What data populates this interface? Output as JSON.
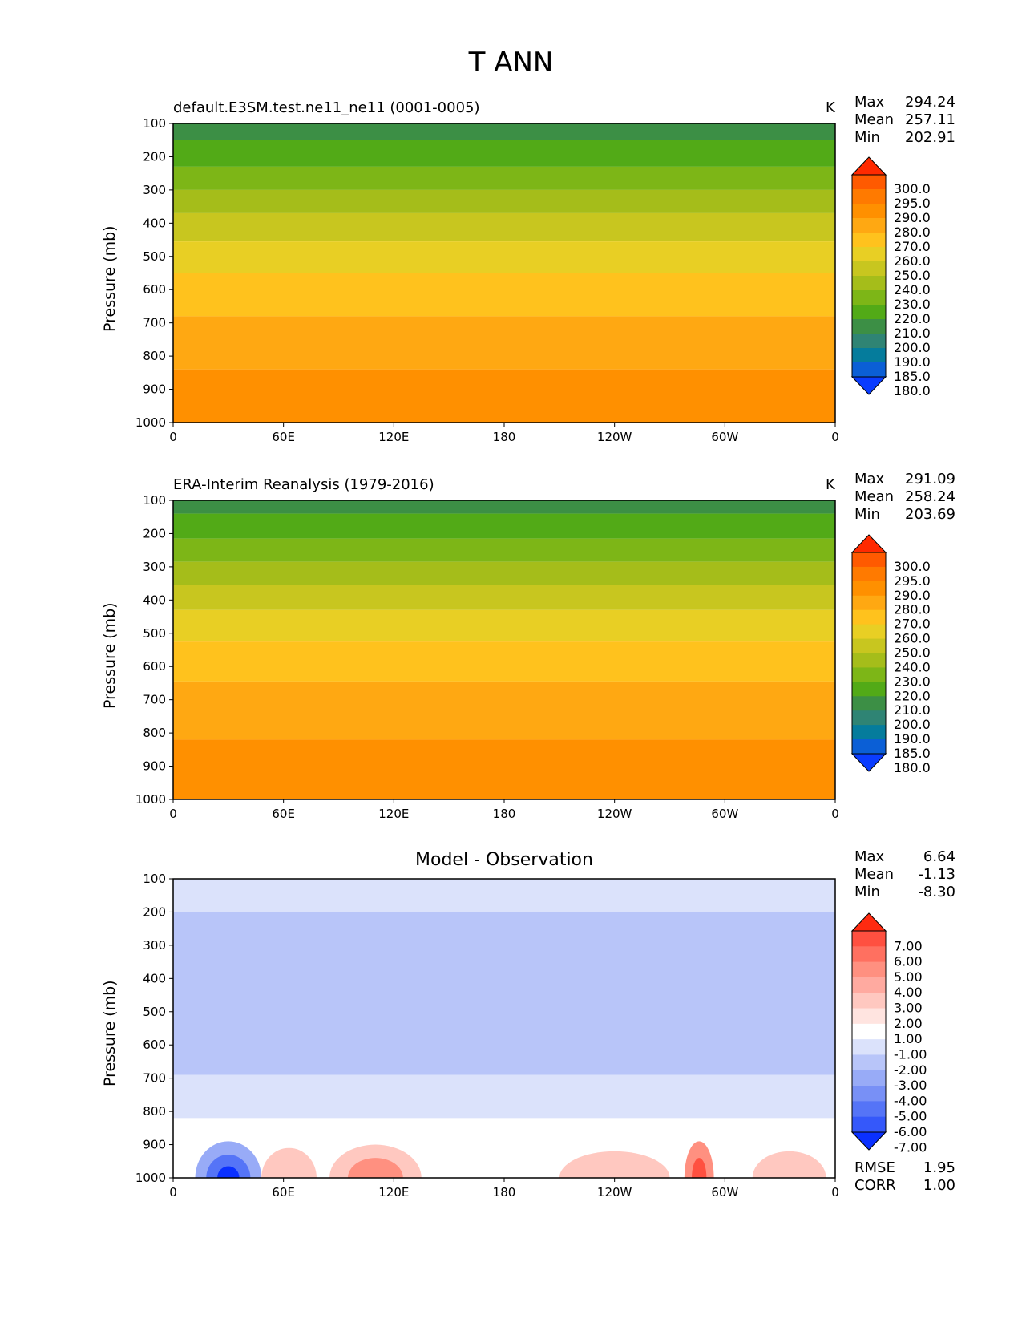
{
  "figure": {
    "title": "T ANN"
  },
  "chart_data": [
    {
      "type": "contour",
      "title": "default.E3SM.test.ne11_ne11 (0001-0005)",
      "units": "K",
      "ylabel": "Pressure (mb)",
      "xticks": [
        "0",
        "60E",
        "120E",
        "180",
        "120W",
        "60W",
        "0"
      ],
      "yticks": [
        "100",
        "200",
        "300",
        "400",
        "500",
        "600",
        "700",
        "800",
        "900",
        "1000"
      ],
      "ylim": [
        100,
        1000
      ],
      "stats": {
        "max_label": "Max",
        "max": "294.24",
        "mean_label": "Mean",
        "mean": "257.11",
        "min_label": "Min",
        "min": "202.91"
      },
      "colorbar_levels": [
        "300.0",
        "295.0",
        "290.0",
        "280.0",
        "270.0",
        "260.0",
        "250.0",
        "240.0",
        "230.0",
        "220.0",
        "210.0",
        "200.0",
        "190.0",
        "185.0",
        "180.0"
      ],
      "colorbar_colors": [
        "#ff2a00",
        "#ff5a00",
        "#ff7a00",
        "#ff9000",
        "#ffa812",
        "#ffc21d",
        "#e8cf24",
        "#c8c61f",
        "#a5bd1a",
        "#7db617",
        "#52aa17",
        "#3c8f45",
        "#2f8474",
        "#057c9c",
        "#0b5fd6",
        "#0a3cff"
      ],
      "bands": [
        {
          "p_top": 100,
          "p_bottom": 150,
          "color": "#3c8f45"
        },
        {
          "p_top": 150,
          "p_bottom": 230,
          "color": "#52aa17"
        },
        {
          "p_top": 230,
          "p_bottom": 300,
          "color": "#7db617"
        },
        {
          "p_top": 300,
          "p_bottom": 370,
          "color": "#a5bd1a"
        },
        {
          "p_top": 370,
          "p_bottom": 455,
          "color": "#c8c61f"
        },
        {
          "p_top": 455,
          "p_bottom": 550,
          "color": "#e8cf24"
        },
        {
          "p_top": 550,
          "p_bottom": 680,
          "color": "#ffc21d"
        },
        {
          "p_top": 680,
          "p_bottom": 840,
          "color": "#ffa812"
        },
        {
          "p_top": 840,
          "p_bottom": 1000,
          "color": "#ff9000"
        }
      ]
    },
    {
      "type": "contour",
      "title": "ERA-Interim Reanalysis (1979-2016)",
      "units": "K",
      "ylabel": "Pressure (mb)",
      "xticks": [
        "0",
        "60E",
        "120E",
        "180",
        "120W",
        "60W",
        "0"
      ],
      "yticks": [
        "100",
        "200",
        "300",
        "400",
        "500",
        "600",
        "700",
        "800",
        "900",
        "1000"
      ],
      "ylim": [
        100,
        1000
      ],
      "stats": {
        "max_label": "Max",
        "max": "291.09",
        "mean_label": "Mean",
        "mean": "258.24",
        "min_label": "Min",
        "min": "203.69"
      },
      "colorbar_levels": [
        "300.0",
        "295.0",
        "290.0",
        "280.0",
        "270.0",
        "260.0",
        "250.0",
        "240.0",
        "230.0",
        "220.0",
        "210.0",
        "200.0",
        "190.0",
        "185.0",
        "180.0"
      ],
      "colorbar_colors": [
        "#ff2a00",
        "#ff5a00",
        "#ff7a00",
        "#ff9000",
        "#ffa812",
        "#ffc21d",
        "#e8cf24",
        "#c8c61f",
        "#a5bd1a",
        "#7db617",
        "#52aa17",
        "#3c8f45",
        "#2f8474",
        "#057c9c",
        "#0b5fd6",
        "#0a3cff"
      ],
      "bands": [
        {
          "p_top": 100,
          "p_bottom": 140,
          "color": "#3c8f45"
        },
        {
          "p_top": 140,
          "p_bottom": 215,
          "color": "#52aa17"
        },
        {
          "p_top": 215,
          "p_bottom": 285,
          "color": "#7db617"
        },
        {
          "p_top": 285,
          "p_bottom": 355,
          "color": "#a5bd1a"
        },
        {
          "p_top": 355,
          "p_bottom": 430,
          "color": "#c8c61f"
        },
        {
          "p_top": 430,
          "p_bottom": 525,
          "color": "#e8cf24"
        },
        {
          "p_top": 525,
          "p_bottom": 645,
          "color": "#ffc21d"
        },
        {
          "p_top": 645,
          "p_bottom": 820,
          "color": "#ffa812"
        },
        {
          "p_top": 820,
          "p_bottom": 1000,
          "color": "#ff9000"
        }
      ]
    },
    {
      "type": "contour",
      "title": "Model - Observation",
      "ylabel": "Pressure (mb)",
      "xticks": [
        "0",
        "60E",
        "120E",
        "180",
        "120W",
        "60W",
        "0"
      ],
      "yticks": [
        "100",
        "200",
        "300",
        "400",
        "500",
        "600",
        "700",
        "800",
        "900",
        "1000"
      ],
      "ylim": [
        100,
        1000
      ],
      "stats": {
        "max_label": "Max",
        "max": "6.64",
        "mean_label": "Mean",
        "mean": "-1.13",
        "min_label": "Min",
        "min": "-8.30"
      },
      "metrics": {
        "rmse_label": "RMSE",
        "rmse": "1.95",
        "corr_label": "CORR",
        "corr": "1.00"
      },
      "colorbar_levels": [
        "7.00",
        "6.00",
        "5.00",
        "4.00",
        "3.00",
        "2.00",
        "1.00",
        "-1.00",
        "-2.00",
        "-3.00",
        "-4.00",
        "-5.00",
        "-6.00",
        "-7.00"
      ],
      "colorbar_colors": [
        "#ff2a10",
        "#ff5040",
        "#ff7060",
        "#ff9080",
        "#ffaaa0",
        "#ffc8c0",
        "#ffe4e0",
        "#ffffff",
        "#dbe2fb",
        "#b8c5f9",
        "#98abf7",
        "#7890f6",
        "#5574f7",
        "#3558fa",
        "#0a30ff"
      ],
      "bands": [
        {
          "p_top": 100,
          "p_bottom": 200,
          "color": "#dbe2fb"
        },
        {
          "p_top": 200,
          "p_bottom": 690,
          "color": "#b8c5f9"
        },
        {
          "p_top": 690,
          "p_bottom": 820,
          "color": "#dbe2fb"
        },
        {
          "p_top": 820,
          "p_bottom": 1000,
          "color": "#ffffff"
        }
      ],
      "blobs": [
        {
          "lon": 30,
          "p": 1000,
          "dlon": 18,
          "dp": 110,
          "color": "#98abf7"
        },
        {
          "lon": 30,
          "p": 1000,
          "dlon": 12,
          "dp": 70,
          "color": "#5574f7"
        },
        {
          "lon": 30,
          "p": 1000,
          "dlon": 6,
          "dp": 35,
          "color": "#0a30ff"
        },
        {
          "lon": 63,
          "p": 1000,
          "dlon": 15,
          "dp": 90,
          "color": "#ffc8c0"
        },
        {
          "lon": 110,
          "p": 1000,
          "dlon": 25,
          "dp": 100,
          "color": "#ffc8c0"
        },
        {
          "lon": 110,
          "p": 1000,
          "dlon": 15,
          "dp": 60,
          "color": "#ff9080"
        },
        {
          "lon": 240,
          "p": 1000,
          "dlon": 30,
          "dp": 80,
          "color": "#ffc8c0"
        },
        {
          "lon": 286,
          "p": 1000,
          "dlon": 8,
          "dp": 110,
          "color": "#ff9080"
        },
        {
          "lon": 286,
          "p": 1000,
          "dlon": 4,
          "dp": 60,
          "color": "#ff5040"
        },
        {
          "lon": 335,
          "p": 1000,
          "dlon": 20,
          "dp": 80,
          "color": "#ffc8c0"
        }
      ]
    }
  ]
}
